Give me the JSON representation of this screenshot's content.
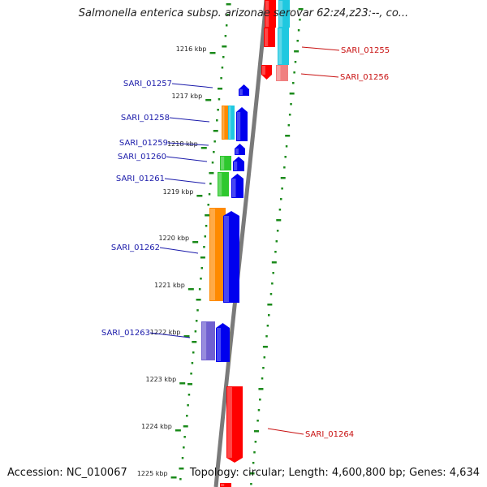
{
  "title": "Salmonella enterica subsp. arizonae serovar 62:z4,z23:--, co...",
  "footer": {
    "accession": "Accession: NC_010067",
    "topology": "Topology: circular; Length: 4,600,800 bp; Genes: 4,634"
  },
  "colors": {
    "backbone": "#7a7a7a",
    "ticks": "#1a8a1a",
    "left_label": "#1a1aaa",
    "right_label": "#c81010",
    "gene_blue": "#0000ee",
    "gene_red": "#ff0000",
    "gene_orange": "#ff8a00",
    "gene_cyan": "#1fc8e0",
    "gene_green": "#2ec82e",
    "gene_purple": "#7060d0",
    "gene_pink": "#f08080"
  },
  "scale_labels": [
    "1216 kbp",
    "1217 kbp",
    "1218 kbp",
    "1219 kbp",
    "1220 kbp",
    "1221 kbp",
    "1222 kbp",
    "1223 kbp",
    "1224 kbp",
    "1225 kbp"
  ],
  "gene_labels_left": [
    "SARI_01257",
    "SARI_01258",
    "SARI_01259",
    "SARI_01260",
    "SARI_01261",
    "SARI_01262",
    "SARI_01263"
  ],
  "gene_labels_right": [
    "SARI_01255",
    "SARI_01256",
    "SARI_01264"
  ]
}
